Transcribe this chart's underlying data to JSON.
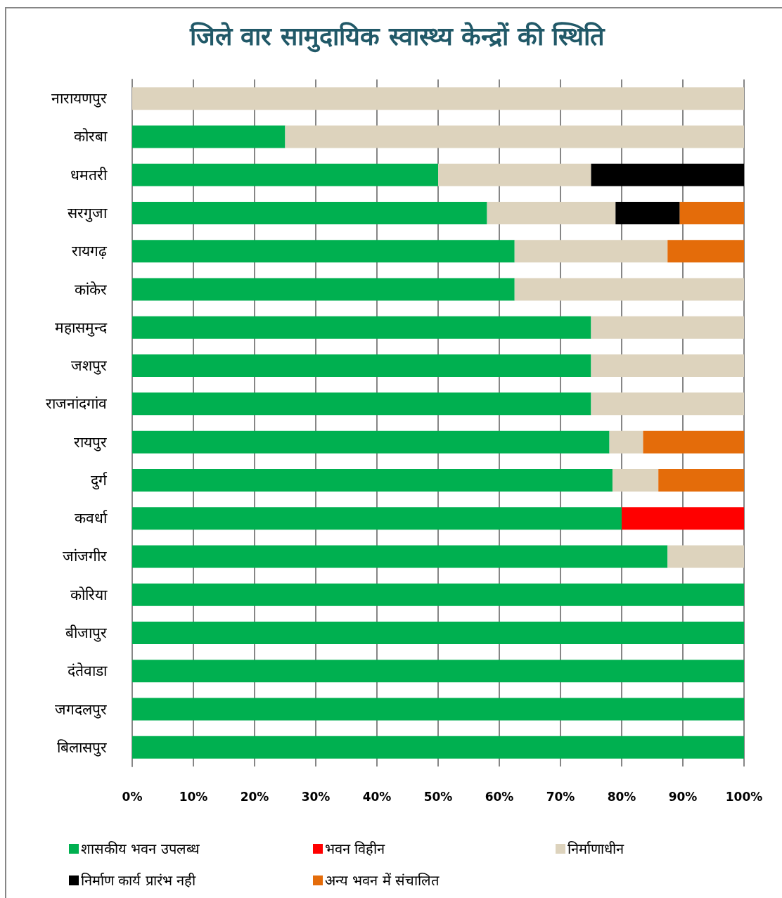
{
  "chart_data": {
    "type": "bar",
    "title": "जिले वार सामुदायिक स्वास्थ्य केन्द्रों की स्थिति",
    "orientation": "horizontal",
    "stacked": true,
    "categories": [
      "नारायणपुर",
      "कोरबा",
      "धमतरी",
      "सरगुजा",
      "रायगढ़",
      "कांकेर",
      "महासमुन्द",
      "जशपुर",
      "राजनांदगांव",
      "रायपुर",
      "दुर्ग",
      "कवर्धा",
      "जांजगीर",
      "कोरिया",
      "बीजापुर",
      "दंतेवाडा",
      "जगदलपुर",
      "बिलासपुर"
    ],
    "series": [
      {
        "name": "शासकीय भवन उपलब्ध",
        "color": "#00b050",
        "values": [
          0,
          25,
          50,
          58,
          62.5,
          62.5,
          75,
          75,
          75,
          78,
          78.5,
          80,
          87.5,
          100,
          100,
          100,
          100,
          100
        ]
      },
      {
        "name": "भवन विहीन",
        "color": "#ff0000",
        "values": [
          0,
          0,
          0,
          0,
          0,
          0,
          0,
          0,
          0,
          0,
          0,
          20,
          0,
          0,
          0,
          0,
          0,
          0
        ]
      },
      {
        "name": "निर्माणाधीन",
        "color": "#ddd3bd",
        "values": [
          100,
          75,
          25,
          21,
          25,
          37.5,
          25,
          25,
          25,
          5.5,
          7.5,
          0,
          12.5,
          0,
          0,
          0,
          0,
          0
        ]
      },
      {
        "name": "निर्माण कार्य प्रारंभ नही",
        "color": "#000000",
        "values": [
          0,
          0,
          25,
          10.5,
          0,
          0,
          0,
          0,
          0,
          0,
          0,
          0,
          0,
          0,
          0,
          0,
          0,
          0
        ]
      },
      {
        "name": "अन्य भवन में संचालित",
        "color": "#e46c0a",
        "values": [
          0,
          0,
          0,
          10.5,
          12.5,
          0,
          0,
          0,
          0,
          16.5,
          14,
          0,
          0,
          0,
          0,
          0,
          0,
          0
        ]
      }
    ],
    "xlim": [
      0,
      100
    ],
    "xticks": [
      {
        "value": 0,
        "label": "0%"
      },
      {
        "value": 10,
        "label": "10%"
      },
      {
        "value": 20,
        "label": "20%"
      },
      {
        "value": 30,
        "label": "30%"
      },
      {
        "value": 40,
        "label": "40%"
      },
      {
        "value": 50,
        "label": "50%"
      },
      {
        "value": 60,
        "label": "60%"
      },
      {
        "value": 70,
        "label": "70%"
      },
      {
        "value": 80,
        "label": "80%"
      },
      {
        "value": 90,
        "label": "90%"
      },
      {
        "value": 100,
        "label": "100%"
      }
    ],
    "grid": "x",
    "legend": "bottom"
  }
}
